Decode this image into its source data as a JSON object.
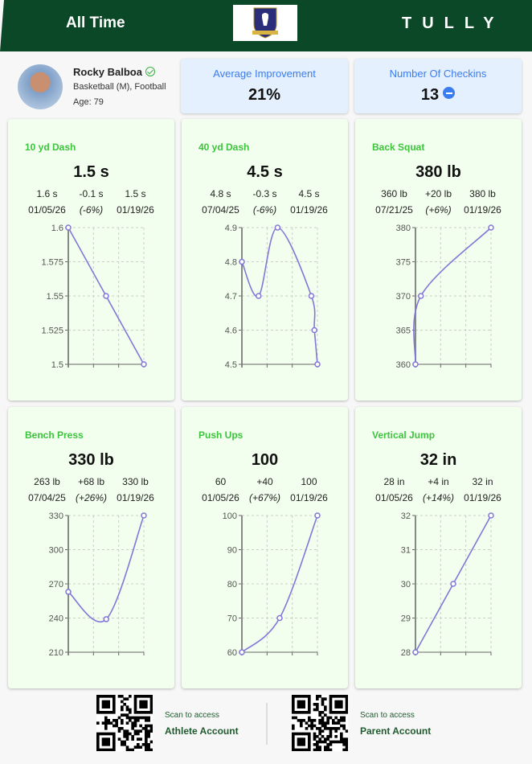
{
  "header": {
    "title": "All Time",
    "brand": "TULLY",
    "logo_text": "AFC RICHMOND"
  },
  "profile": {
    "name": "Rocky Balboa",
    "sports": "Basketball (M), Football",
    "age": "Age: 79"
  },
  "stats": [
    {
      "label": "Average Improvement",
      "value": "21%"
    },
    {
      "label": "Number Of Checkins",
      "value": "13"
    }
  ],
  "colors": {
    "header": "#0b4827",
    "accent": "#3cc43c",
    "line": "#8177d8",
    "stat_label": "#3b7cf0"
  },
  "chart_data": [
    {
      "type": "line",
      "title": "10 yd Dash",
      "current": "1.5 s",
      "first_value": "1.6 s",
      "change": "-0.1 s",
      "last_value": "1.5 s",
      "first_date": "01/05/26",
      "change_pct": "(-6%)",
      "last_date": "01/19/26",
      "x_days": [
        0,
        7,
        14
      ],
      "values": [
        1.6,
        1.55,
        1.5
      ],
      "yticks": [
        "1.5",
        "1.525",
        "1.55",
        "1.575",
        "1.6"
      ],
      "ylim": [
        1.5,
        1.6
      ],
      "smooth": false
    },
    {
      "type": "line",
      "title": "40 yd Dash",
      "current": "4.5 s",
      "first_value": "4.8 s",
      "change": "-0.3 s",
      "last_value": "4.5 s",
      "first_date": "07/04/25",
      "change_pct": "(-6%)",
      "last_date": "01/19/26",
      "x_days": [
        0,
        44,
        94,
        183,
        191,
        199
      ],
      "values": [
        4.8,
        4.7,
        4.9,
        4.7,
        4.6,
        4.5
      ],
      "yticks": [
        "4.5",
        "4.6",
        "4.7",
        "4.8",
        "4.9"
      ],
      "ylim": [
        4.5,
        4.9
      ],
      "smooth": true
    },
    {
      "type": "line",
      "title": "Back Squat",
      "current": "380 lb",
      "first_value": "360 lb",
      "change": "+20 lb",
      "last_value": "380 lb",
      "first_date": "07/21/25",
      "change_pct": "(+6%)",
      "last_date": "01/19/26",
      "x_days": [
        0,
        13,
        182
      ],
      "values": [
        360,
        370,
        380
      ],
      "yticks": [
        "360",
        "365",
        "370",
        "375",
        "380"
      ],
      "ylim": [
        360,
        380
      ],
      "smooth": true
    },
    {
      "type": "line",
      "title": "Bench Press",
      "current": "330 lb",
      "first_value": "263 lb",
      "change": "+68 lb",
      "last_value": "330 lb",
      "first_date": "07/04/25",
      "change_pct": "(+26%)",
      "last_date": "01/19/26",
      "x_days": [
        0,
        100,
        199
      ],
      "values": [
        263,
        239,
        330
      ],
      "yticks": [
        "210",
        "240",
        "270",
        "300",
        "330"
      ],
      "ylim": [
        210,
        330
      ],
      "smooth": true
    },
    {
      "type": "line",
      "title": "Push Ups",
      "current": "100",
      "first_value": "60",
      "change": "+40",
      "last_value": "100",
      "first_date": "01/05/26",
      "change_pct": "(+67%)",
      "last_date": "01/19/26",
      "x_days": [
        0,
        7,
        14
      ],
      "values": [
        60,
        70,
        100
      ],
      "yticks": [
        "60",
        "70",
        "80",
        "90",
        "100"
      ],
      "ylim": [
        60,
        100
      ],
      "smooth": true
    },
    {
      "type": "line",
      "title": "Vertical Jump",
      "current": "32 in",
      "first_value": "28 in",
      "change": "+4 in",
      "last_value": "32 in",
      "first_date": "01/05/26",
      "change_pct": "(+14%)",
      "last_date": "01/19/26",
      "x_days": [
        0,
        7,
        14
      ],
      "values": [
        28,
        30,
        32
      ],
      "yticks": [
        "28",
        "29",
        "30",
        "31",
        "32"
      ],
      "ylim": [
        28,
        32
      ],
      "smooth": false
    }
  ],
  "footer": [
    {
      "scan": "Scan to access",
      "account": "Athlete Account"
    },
    {
      "scan": "Scan to access",
      "account": "Parent Account"
    }
  ]
}
